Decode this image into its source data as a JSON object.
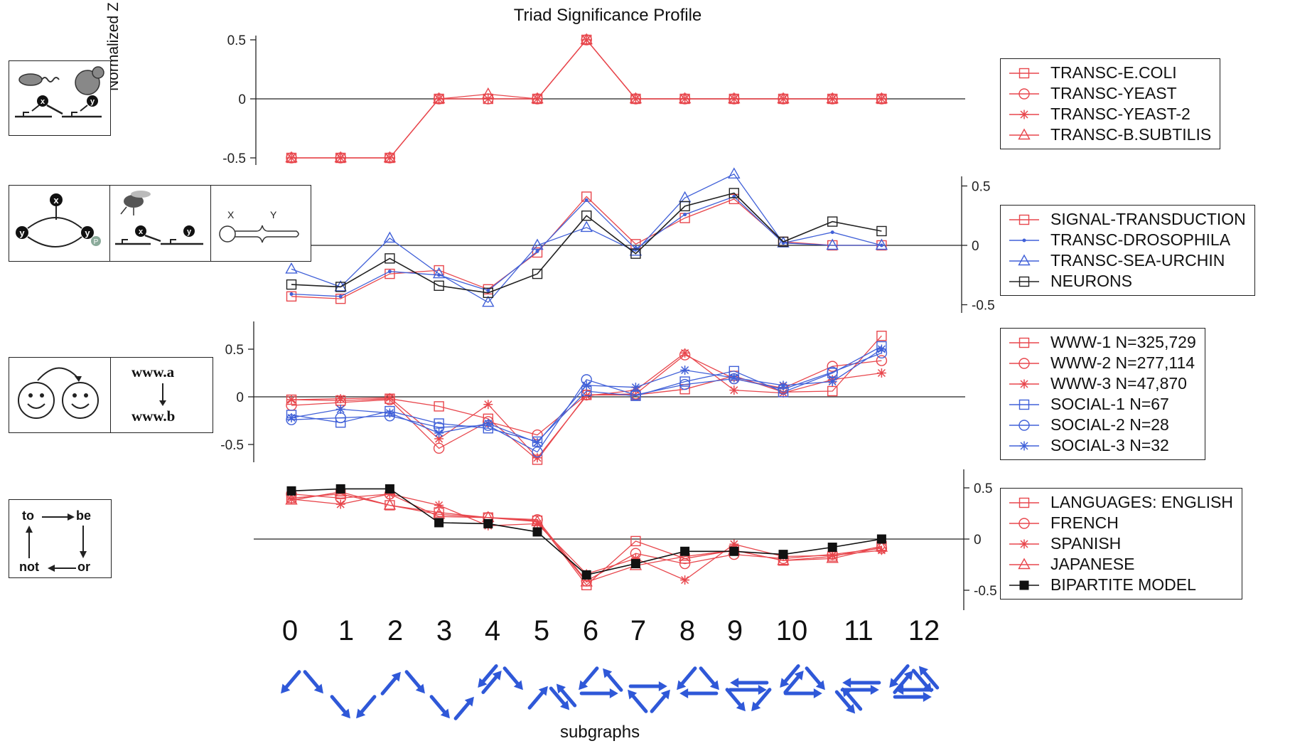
{
  "figure": {
    "title": "Triad Significance Profile",
    "y_axis_title": "Normalized Z score",
    "x_axis_title": "subgraphs"
  },
  "illustrations": {
    "www_from": "www.a",
    "www_to": "www.b",
    "word_to": "to",
    "word_be": "be",
    "word_or": "or",
    "word_not": "not",
    "node_x": "x",
    "node_y": "y",
    "node_p": "P",
    "neuron_x": "X",
    "neuron_y": "Y"
  },
  "chart_data": [
    {
      "type": "line",
      "title": "Triad Significance Profile",
      "ylabel": "Normalized Z score",
      "x": [
        "0",
        "1",
        "2",
        "3",
        "4",
        "5",
        "6",
        "7",
        "8",
        "9",
        "10",
        "11",
        "12"
      ],
      "ylim": [
        -0.6,
        0.6
      ],
      "y_ticks": [
        "0.5",
        "0",
        "-0.5"
      ],
      "y_axis_side": "left",
      "legend_position": "right",
      "series": [
        {
          "name": "TRANSC-E.COLI",
          "marker": "square",
          "color": "#e8474d",
          "values": [
            -0.5,
            -0.5,
            -0.5,
            0,
            0,
            0,
            0.5,
            0,
            0,
            0,
            0,
            0,
            0
          ]
        },
        {
          "name": "TRANSC-YEAST",
          "marker": "circle",
          "color": "#e8474d",
          "values": [
            -0.5,
            -0.5,
            -0.5,
            0,
            0,
            0,
            0.5,
            0,
            0,
            0,
            0,
            0,
            0
          ]
        },
        {
          "name": "TRANSC-YEAST-2",
          "marker": "star",
          "color": "#e8474d",
          "values": [
            -0.5,
            -0.5,
            -0.5,
            0,
            0,
            0,
            0.5,
            0,
            0,
            0,
            0,
            0,
            0
          ]
        },
        {
          "name": "TRANSC-B.SUBTILIS",
          "marker": "triangle",
          "color": "#e8474d",
          "values": [
            -0.5,
            -0.5,
            -0.5,
            0,
            0.04,
            0,
            0.5,
            0,
            0,
            0,
            0,
            0,
            0
          ]
        }
      ]
    },
    {
      "type": "line",
      "x": [
        "0",
        "1",
        "2",
        "3",
        "4",
        "5",
        "6",
        "7",
        "8",
        "9",
        "10",
        "11",
        "12"
      ],
      "ylim": [
        -0.55,
        0.55
      ],
      "y_ticks": [
        "0.5",
        "0",
        "-0.5"
      ],
      "y_axis_side": "right",
      "legend_position": "right",
      "series": [
        {
          "name": "SIGNAL-TRANSDUCTION",
          "marker": "square",
          "color": "#e8474d",
          "values": [
            -0.43,
            -0.45,
            -0.24,
            -0.21,
            -0.37,
            -0.06,
            0.41,
            0.01,
            0.23,
            0.39,
            0.03,
            0,
            0
          ]
        },
        {
          "name": "TRANSC-DROSOPHILA",
          "marker": "dot",
          "color": "#4060d8",
          "values": [
            -0.41,
            -0.43,
            -0.22,
            -0.25,
            -0.38,
            -0.05,
            0.38,
            -0.03,
            0.26,
            0.41,
            0.02,
            0.11,
            0
          ]
        },
        {
          "name": "TRANSC-SEA-URCHIN",
          "marker": "triangle",
          "color": "#4060d8",
          "values": [
            -0.2,
            -0.35,
            0.06,
            -0.24,
            -0.48,
            0,
            0.15,
            -0.05,
            0.4,
            0.6,
            0.02,
            0,
            0
          ]
        },
        {
          "name": "NEURONS",
          "marker": "square",
          "color": "#222222",
          "values": [
            -0.33,
            -0.35,
            -0.11,
            -0.34,
            -0.4,
            -0.24,
            0.25,
            -0.07,
            0.33,
            0.44,
            0.03,
            0.2,
            0.12
          ]
        }
      ]
    },
    {
      "type": "line",
      "x": [
        "0",
        "1",
        "2",
        "3",
        "4",
        "5",
        "6",
        "7",
        "8",
        "9",
        "10",
        "11",
        "12"
      ],
      "ylim": [
        -0.7,
        0.8
      ],
      "y_ticks": [
        "0.5",
        "0",
        "-0.5"
      ],
      "y_axis_side": "left",
      "legend_position": "right",
      "series": [
        {
          "name": "WWW-1 N=325,729",
          "marker": "square",
          "color": "#e8474d",
          "values": [
            -0.03,
            -0.04,
            -0.02,
            -0.1,
            -0.23,
            -0.66,
            0.02,
            0.02,
            0.08,
            0.22,
            0.05,
            0.06,
            0.64
          ]
        },
        {
          "name": "WWW-2 N=277,114",
          "marker": "circle",
          "color": "#e8474d",
          "values": [
            -0.09,
            -0.06,
            -0.03,
            -0.54,
            -0.26,
            -0.4,
            0.02,
            0.03,
            0.44,
            0.19,
            0.09,
            0.32,
            0.38
          ]
        },
        {
          "name": "WWW-3 N=47,870",
          "marker": "star",
          "color": "#e8474d",
          "values": [
            -0.03,
            -0.02,
            -0.01,
            -0.44,
            -0.08,
            -0.64,
            0.01,
            0.07,
            0.46,
            0.07,
            0.04,
            0.18,
            0.25
          ]
        },
        {
          "name": "SOCIAL-1 N=67",
          "marker": "square",
          "color": "#4060d8",
          "values": [
            -0.19,
            -0.27,
            -0.15,
            -0.28,
            -0.33,
            -0.47,
            0.06,
            0.01,
            0.16,
            0.27,
            0.05,
            0.25,
            0.53
          ]
        },
        {
          "name": "SOCIAL-2 N=28",
          "marker": "circle",
          "color": "#4060d8",
          "values": [
            -0.24,
            -0.22,
            -0.2,
            -0.32,
            -0.3,
            -0.58,
            0.18,
            0.02,
            0.13,
            0.19,
            0.08,
            0.26,
            0.46
          ]
        },
        {
          "name": "SOCIAL-3 N=32",
          "marker": "star",
          "color": "#4060d8",
          "values": [
            -0.22,
            -0.13,
            -0.17,
            -0.38,
            -0.28,
            -0.48,
            0.12,
            0.1,
            0.28,
            0.2,
            0.12,
            0.16,
            0.5
          ]
        }
      ]
    },
    {
      "type": "line",
      "x": [
        "0",
        "1",
        "2",
        "3",
        "4",
        "5",
        "6",
        "7",
        "8",
        "9",
        "10",
        "11",
        "12"
      ],
      "ylim": [
        -0.7,
        0.7
      ],
      "y_ticks": [
        "0.5",
        "0",
        "-0.5"
      ],
      "y_axis_side": "right",
      "legend_position": "right",
      "series": [
        {
          "name": "LANGUAGES: ENGLISH",
          "marker": "square",
          "color": "#e8474d",
          "values": [
            0.4,
            0.44,
            0.33,
            0.26,
            0.21,
            0.18,
            -0.45,
            -0.02,
            -0.19,
            -0.11,
            -0.21,
            -0.17,
            -0.07
          ]
        },
        {
          "name": "FRENCH",
          "marker": "circle",
          "color": "#e8474d",
          "values": [
            0.44,
            0.4,
            0.44,
            0.22,
            0.21,
            0.19,
            -0.41,
            -0.14,
            -0.24,
            -0.15,
            -0.19,
            -0.15,
            -0.09
          ]
        },
        {
          "name": "SPANISH",
          "marker": "star",
          "color": "#e8474d",
          "values": [
            0.39,
            0.34,
            0.44,
            0.33,
            0.13,
            0.15,
            -0.34,
            -0.19,
            -0.4,
            -0.05,
            -0.17,
            -0.16,
            -0.11
          ]
        },
        {
          "name": "JAPANESE",
          "marker": "triangle",
          "color": "#e8474d",
          "values": [
            0.38,
            0.46,
            0.33,
            0.24,
            0.21,
            0.17,
            -0.42,
            -0.26,
            -0.17,
            -0.11,
            -0.21,
            -0.19,
            -0.08
          ]
        },
        {
          "name": "BIPARTITE MODEL",
          "marker": "filled-square",
          "color": "#111111",
          "values": [
            0.47,
            0.49,
            0.49,
            0.16,
            0.15,
            0.07,
            -0.35,
            -0.24,
            -0.12,
            -0.12,
            -0.15,
            -0.08,
            0.0
          ]
        }
      ]
    }
  ]
}
